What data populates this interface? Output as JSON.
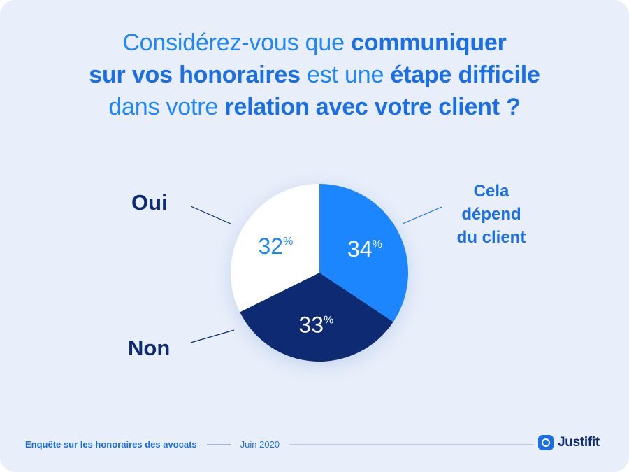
{
  "title": {
    "line1": {
      "a": "Considérez-vous que ",
      "b": "communiquer"
    },
    "line2": {
      "a": "sur vos honoraires",
      "b": " est une ",
      "c": "étape difficile"
    },
    "line3": {
      "a": "dans votre ",
      "b": "relation avec votre client ?"
    }
  },
  "chart_data": {
    "type": "pie",
    "unit": "%",
    "slices": [
      {
        "label": "Cela dépend du client",
        "label_lines": [
          "Cela",
          "dépend",
          "du client"
        ],
        "value": 34,
        "value_text": "34",
        "color": "#1f86ff",
        "text_color": "#ffffff"
      },
      {
        "label": "Non",
        "value": 33,
        "value_text": "33",
        "color": "#0d2b73",
        "text_color": "#ffffff"
      },
      {
        "label": "Oui",
        "value": 32,
        "value_text": "32",
        "color": "#ffffff",
        "text_color": "#1f86ff"
      }
    ]
  },
  "footer": {
    "survey": "Enquête sur les honoraires des avocats",
    "date": "Juin 2020"
  },
  "brand": {
    "name": "Justifit",
    "icon": "justifit-logo-icon"
  }
}
